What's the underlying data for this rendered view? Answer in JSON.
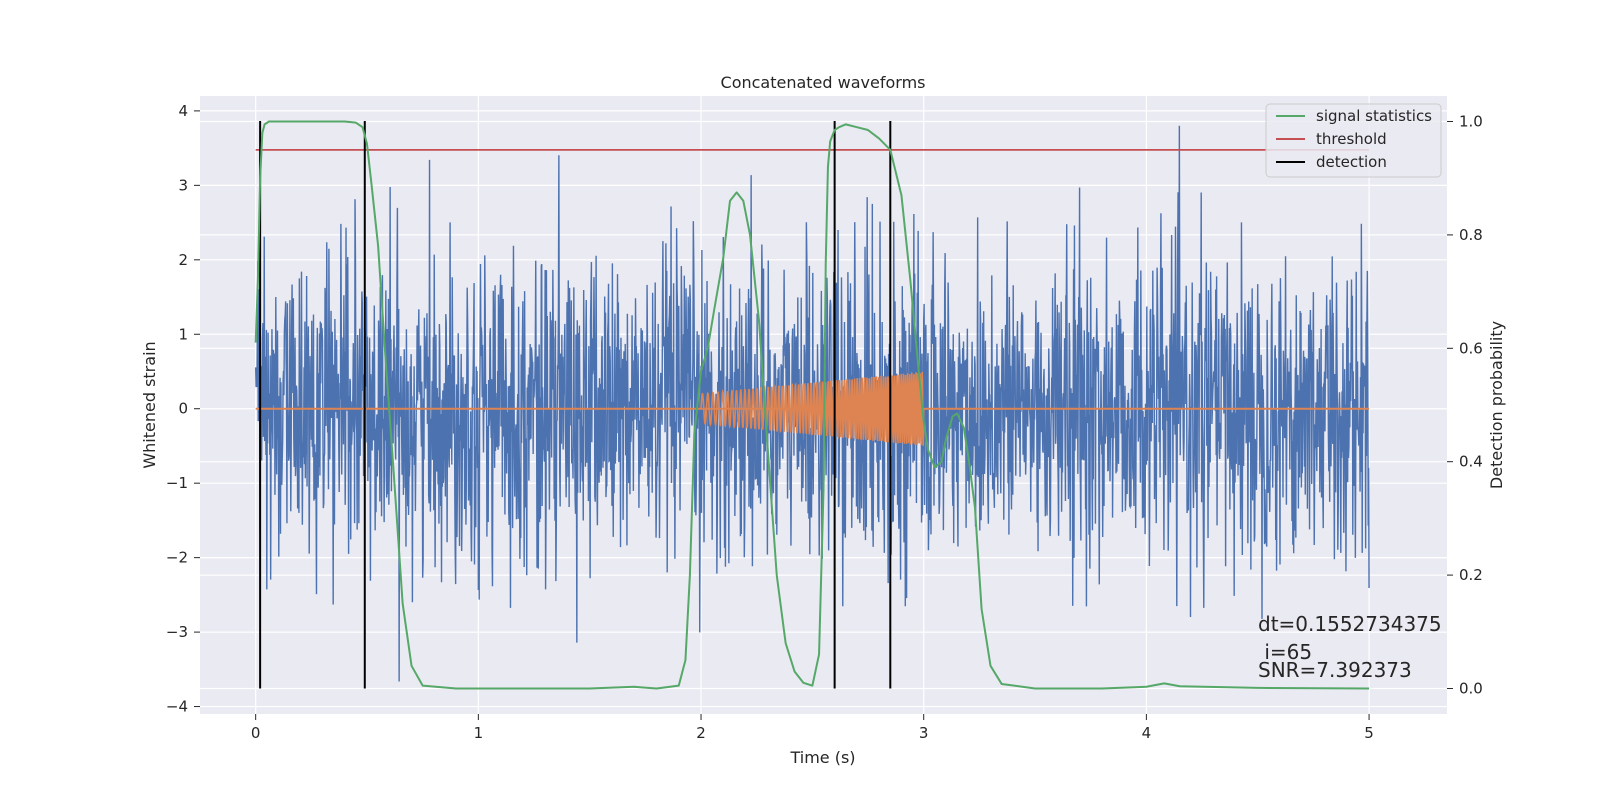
{
  "chart_data": {
    "type": "line",
    "title": "Concatenated waveforms",
    "xlabel": "Time (s)",
    "ylabel": "Whitened strain",
    "ylabel_right": "Detection probability",
    "xlim": [
      -0.25,
      5.35
    ],
    "ylim": [
      -4.1,
      4.2
    ],
    "ylim_right": [
      -0.045,
      1.045
    ],
    "x_ticks": [
      0,
      1,
      2,
      3,
      4,
      5
    ],
    "y_ticks": [
      -4,
      -3,
      -2,
      -1,
      0,
      1,
      2,
      3,
      4
    ],
    "y_ticks_right": [
      0.0,
      0.2,
      0.4,
      0.6,
      0.8,
      1.0
    ],
    "x_tick_labels": [
      "0",
      "1",
      "2",
      "3",
      "4",
      "5"
    ],
    "y_tick_labels": [
      "−4",
      "−3",
      "−2",
      "−1",
      "0",
      "1",
      "2",
      "3",
      "4"
    ],
    "y_tick_labels_right": [
      "0.0",
      "0.2",
      "0.4",
      "0.6",
      "0.8",
      "1.0"
    ],
    "grid": true,
    "background": "#eaeaf2",
    "noise": {
      "color": "#4c72b0",
      "x_range": [
        0,
        5
      ],
      "typical_amplitude": 1.0,
      "max": 3.8,
      "min": -3.7
    },
    "injected_signal": {
      "color": "#dd8452",
      "x_start": 2.0,
      "x_end": 3.0,
      "amplitude_start": 0.2,
      "amplitude_end": 0.5,
      "zero_line_range": [
        0,
        5
      ]
    },
    "series": [
      {
        "name": "signal statistics",
        "color": "#55a868",
        "axis": "right",
        "x": [
          0,
          0.01,
          0.02,
          0.03,
          0.04,
          0.06,
          0.1,
          0.2,
          0.3,
          0.4,
          0.45,
          0.48,
          0.5,
          0.52,
          0.55,
          0.58,
          0.62,
          0.66,
          0.7,
          0.75,
          0.9,
          1.2,
          1.5,
          1.7,
          1.8,
          1.9,
          1.93,
          1.95,
          1.97,
          2.0,
          2.03,
          2.06,
          2.1,
          2.13,
          2.16,
          2.19,
          2.22,
          2.26,
          2.3,
          2.34,
          2.38,
          2.42,
          2.46,
          2.5,
          2.53,
          2.55,
          2.56,
          2.57,
          2.58,
          2.6,
          2.62,
          2.65,
          2.7,
          2.75,
          2.8,
          2.85,
          2.9,
          2.94,
          2.98,
          3.0,
          3.02,
          3.05,
          3.08,
          3.1,
          3.13,
          3.15,
          3.18,
          3.2,
          3.23,
          3.26,
          3.3,
          3.35,
          3.5,
          3.8,
          4.0,
          4.08,
          4.15,
          4.5,
          5.0
        ],
        "y": [
          0.61,
          0.72,
          0.9,
          0.98,
          0.995,
          1.0,
          1.0,
          1.0,
          1.0,
          1.0,
          0.998,
          0.99,
          0.96,
          0.89,
          0.78,
          0.6,
          0.38,
          0.15,
          0.04,
          0.005,
          0.0,
          0.0,
          0.0,
          0.003,
          0.0,
          0.005,
          0.05,
          0.2,
          0.45,
          0.56,
          0.6,
          0.67,
          0.76,
          0.86,
          0.875,
          0.86,
          0.8,
          0.65,
          0.42,
          0.2,
          0.08,
          0.03,
          0.01,
          0.005,
          0.06,
          0.35,
          0.75,
          0.92,
          0.965,
          0.985,
          0.99,
          0.995,
          0.99,
          0.985,
          0.97,
          0.95,
          0.87,
          0.72,
          0.55,
          0.47,
          0.42,
          0.39,
          0.4,
          0.44,
          0.48,
          0.485,
          0.46,
          0.41,
          0.32,
          0.14,
          0.04,
          0.008,
          0.0,
          0.0,
          0.003,
          0.009,
          0.004,
          0.001,
          0.0
        ]
      },
      {
        "name": "threshold",
        "color": "#c44e52",
        "axis": "right",
        "x": [
          0,
          5
        ],
        "y": [
          0.95,
          0.95
        ]
      },
      {
        "name": "detection",
        "color": "#000000",
        "axis": "right",
        "lines_x": [
          0.02,
          0.49,
          2.6,
          2.85
        ]
      }
    ],
    "legend": {
      "placement": "top-right",
      "entries": [
        "signal statistics",
        "threshold",
        "detection"
      ]
    },
    "annotations": [
      "dt=0.1552734375",
      " i=65",
      "SNR=7.392373"
    ]
  }
}
